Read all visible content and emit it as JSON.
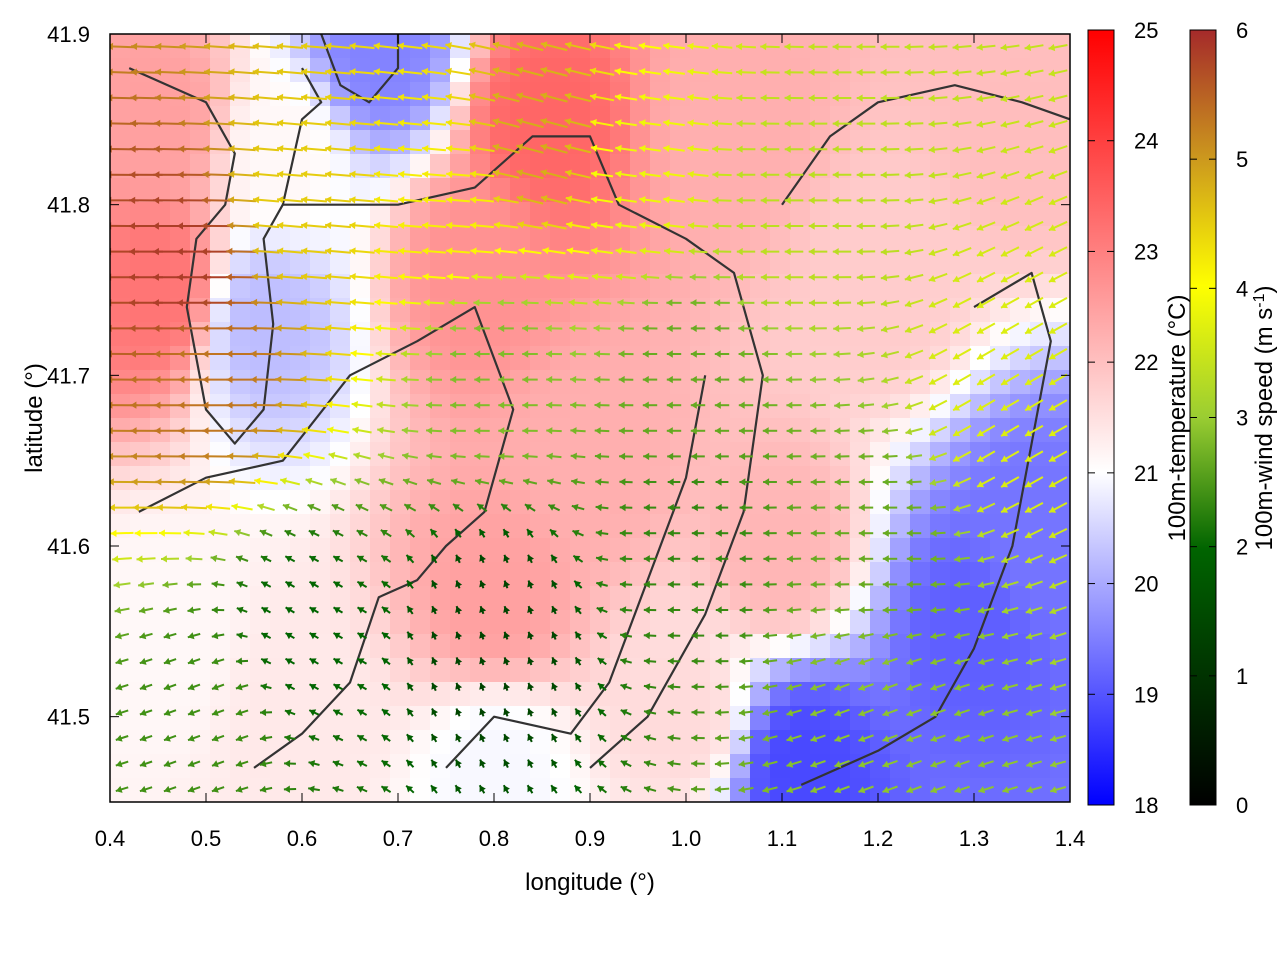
{
  "chart_data": {
    "type": "heatmap",
    "title": "",
    "description_layers": [
      "temperature field (color map)",
      "wind vectors (arrows colored by speed)",
      "contour lines"
    ],
    "xlabel": "longitude (°)",
    "ylabel": "latitude (°)",
    "xlim": [
      0.4,
      1.4
    ],
    "ylim": [
      41.45,
      41.9
    ],
    "xticks": [
      "0.4",
      "0.5",
      "0.6",
      "0.7",
      "0.8",
      "0.9",
      "1.0",
      "1.1",
      "1.2",
      "1.3",
      "1.4"
    ],
    "yticks": [
      "41.5",
      "41.6",
      "41.7",
      "41.8",
      "41.9"
    ],
    "xtick_values": [
      0.4,
      0.5,
      0.6,
      0.7,
      0.8,
      0.9,
      1.0,
      1.1,
      1.2,
      1.3,
      1.4
    ],
    "ytick_values": [
      41.5,
      41.6,
      41.7,
      41.8,
      41.9
    ],
    "grid": false,
    "temperature_colorbar": {
      "label": "100m-temperature (°C)",
      "range": [
        18,
        25
      ],
      "ticks": [
        "18",
        "19",
        "20",
        "21",
        "22",
        "23",
        "24",
        "25"
      ],
      "tick_values": [
        18,
        19,
        20,
        21,
        22,
        23,
        24,
        25
      ],
      "colors": [
        "#0000ff",
        "#ffffff",
        "#ff0000"
      ]
    },
    "wind_colorbar": {
      "label_prefix": "100m-wind speed (m s",
      "label_exponent": "-1",
      "label_suffix": ")",
      "range": [
        0,
        6
      ],
      "ticks": [
        "0",
        "1",
        "2",
        "3",
        "4",
        "5",
        "6"
      ],
      "tick_values": [
        0,
        1,
        2,
        3,
        4,
        5,
        6
      ],
      "colors": [
        "#000000",
        "#006400",
        "#9acd32",
        "#ffff00",
        "#cd9b1d",
        "#a52a2a"
      ]
    },
    "temperature_field": [
      {
        "lon": 0.45,
        "lat": 41.85,
        "t": 22.8
      },
      {
        "lon": 0.45,
        "lat": 41.75,
        "t": 23.4
      },
      {
        "lon": 0.56,
        "lat": 41.73,
        "t": 20.6
      },
      {
        "lon": 0.58,
        "lat": 41.83,
        "t": 21.6
      },
      {
        "lon": 0.68,
        "lat": 41.89,
        "t": 19.8
      },
      {
        "lon": 0.85,
        "lat": 41.85,
        "t": 23.6
      },
      {
        "lon": 0.78,
        "lat": 41.76,
        "t": 23.0
      },
      {
        "lon": 1.05,
        "lat": 41.85,
        "t": 22.6
      },
      {
        "lon": 0.8,
        "lat": 41.57,
        "t": 22.8
      },
      {
        "lon": 0.9,
        "lat": 41.65,
        "t": 22.6
      },
      {
        "lon": 1.1,
        "lat": 41.6,
        "t": 22.5
      },
      {
        "lon": 0.6,
        "lat": 41.5,
        "t": 21.8
      },
      {
        "lon": 0.8,
        "lat": 41.47,
        "t": 21.4
      },
      {
        "lon": 1.12,
        "lat": 41.47,
        "t": 19.0
      },
      {
        "lon": 1.3,
        "lat": 41.55,
        "t": 19.3
      },
      {
        "lon": 1.36,
        "lat": 41.6,
        "t": 19.6
      },
      {
        "lon": 1.2,
        "lat": 41.75,
        "t": 22.2
      },
      {
        "lon": 1.35,
        "lat": 41.85,
        "t": 22.4
      },
      {
        "lon": 0.45,
        "lat": 41.55,
        "t": 21.6
      },
      {
        "lon": 1.0,
        "lat": 41.5,
        "t": 22.0
      }
    ],
    "wind_field": [
      {
        "lon": 0.48,
        "lat": 41.76,
        "dir": 180,
        "speed": 5.8
      },
      {
        "lon": 0.5,
        "lat": 41.7,
        "dir": 180,
        "speed": 5.2
      },
      {
        "lon": 0.6,
        "lat": 41.8,
        "dir": 175,
        "speed": 4.2
      },
      {
        "lon": 0.75,
        "lat": 41.8,
        "dir": 175,
        "speed": 3.8
      },
      {
        "lon": 0.85,
        "lat": 41.84,
        "dir": 165,
        "speed": 4.6
      },
      {
        "lon": 0.95,
        "lat": 41.82,
        "dir": 172,
        "speed": 3.4
      },
      {
        "lon": 1.1,
        "lat": 41.8,
        "dir": 180,
        "speed": 2.8
      },
      {
        "lon": 0.8,
        "lat": 41.7,
        "dir": 180,
        "speed": 2.2
      },
      {
        "lon": 1.0,
        "lat": 41.7,
        "dir": 180,
        "speed": 2.0
      },
      {
        "lon": 0.8,
        "lat": 41.55,
        "dir": 110,
        "speed": 0.8
      },
      {
        "lon": 0.6,
        "lat": 41.55,
        "dir": 150,
        "speed": 1.2
      },
      {
        "lon": 1.0,
        "lat": 41.6,
        "dir": 180,
        "speed": 1.6
      },
      {
        "lon": 1.2,
        "lat": 41.6,
        "dir": 180,
        "speed": 2.0
      },
      {
        "lon": 1.33,
        "lat": 41.68,
        "dir": 210,
        "speed": 3.2
      },
      {
        "lon": 1.2,
        "lat": 41.5,
        "dir": 200,
        "speed": 2.3
      },
      {
        "lon": 0.5,
        "lat": 41.5,
        "dir": 200,
        "speed": 1.7
      }
    ],
    "contours": [
      [
        [
          0.42,
          41.88
        ],
        [
          0.5,
          41.86
        ],
        [
          0.53,
          41.83
        ],
        [
          0.52,
          41.8
        ],
        [
          0.49,
          41.78
        ],
        [
          0.48,
          41.74
        ],
        [
          0.5,
          41.68
        ],
        [
          0.53,
          41.66
        ],
        [
          0.56,
          41.68
        ],
        [
          0.57,
          41.73
        ],
        [
          0.56,
          41.78
        ],
        [
          0.58,
          41.8
        ],
        [
          0.6,
          41.85
        ],
        [
          0.62,
          41.86
        ],
        [
          0.6,
          41.88
        ]
      ],
      [
        [
          0.62,
          41.9
        ],
        [
          0.64,
          41.87
        ],
        [
          0.67,
          41.86
        ],
        [
          0.7,
          41.88
        ],
        [
          0.7,
          41.9
        ]
      ],
      [
        [
          0.58,
          41.8
        ],
        [
          0.7,
          41.8
        ],
        [
          0.78,
          41.81
        ],
        [
          0.84,
          41.84
        ],
        [
          0.9,
          41.84
        ],
        [
          0.93,
          41.8
        ],
        [
          1.0,
          41.78
        ],
        [
          1.05,
          41.76
        ],
        [
          1.08,
          41.7
        ],
        [
          1.06,
          41.62
        ],
        [
          1.02,
          41.56
        ],
        [
          0.96,
          41.5
        ],
        [
          0.9,
          41.47
        ]
      ],
      [
        [
          0.43,
          41.62
        ],
        [
          0.5,
          41.64
        ],
        [
          0.58,
          41.65
        ],
        [
          0.65,
          41.7
        ],
        [
          0.72,
          41.72
        ],
        [
          0.78,
          41.74
        ],
        [
          0.82,
          41.68
        ],
        [
          0.79,
          41.62
        ],
        [
          0.75,
          41.6
        ],
        [
          0.72,
          41.58
        ],
        [
          0.68,
          41.57
        ],
        [
          0.65,
          41.52
        ],
        [
          0.6,
          41.49
        ],
        [
          0.55,
          41.47
        ]
      ],
      [
        [
          0.75,
          41.47
        ],
        [
          0.8,
          41.5
        ],
        [
          0.88,
          41.49
        ],
        [
          0.92,
          41.52
        ],
        [
          0.96,
          41.58
        ],
        [
          1.0,
          41.64
        ],
        [
          1.02,
          41.7
        ]
      ],
      [
        [
          1.12,
          41.46
        ],
        [
          1.2,
          41.48
        ],
        [
          1.26,
          41.5
        ],
        [
          1.3,
          41.54
        ],
        [
          1.34,
          41.6
        ],
        [
          1.36,
          41.66
        ],
        [
          1.38,
          41.72
        ],
        [
          1.36,
          41.76
        ],
        [
          1.3,
          41.74
        ]
      ],
      [
        [
          1.1,
          41.8
        ],
        [
          1.15,
          41.84
        ],
        [
          1.2,
          41.86
        ],
        [
          1.28,
          41.87
        ],
        [
          1.35,
          41.86
        ],
        [
          1.4,
          41.85
        ]
      ]
    ]
  }
}
